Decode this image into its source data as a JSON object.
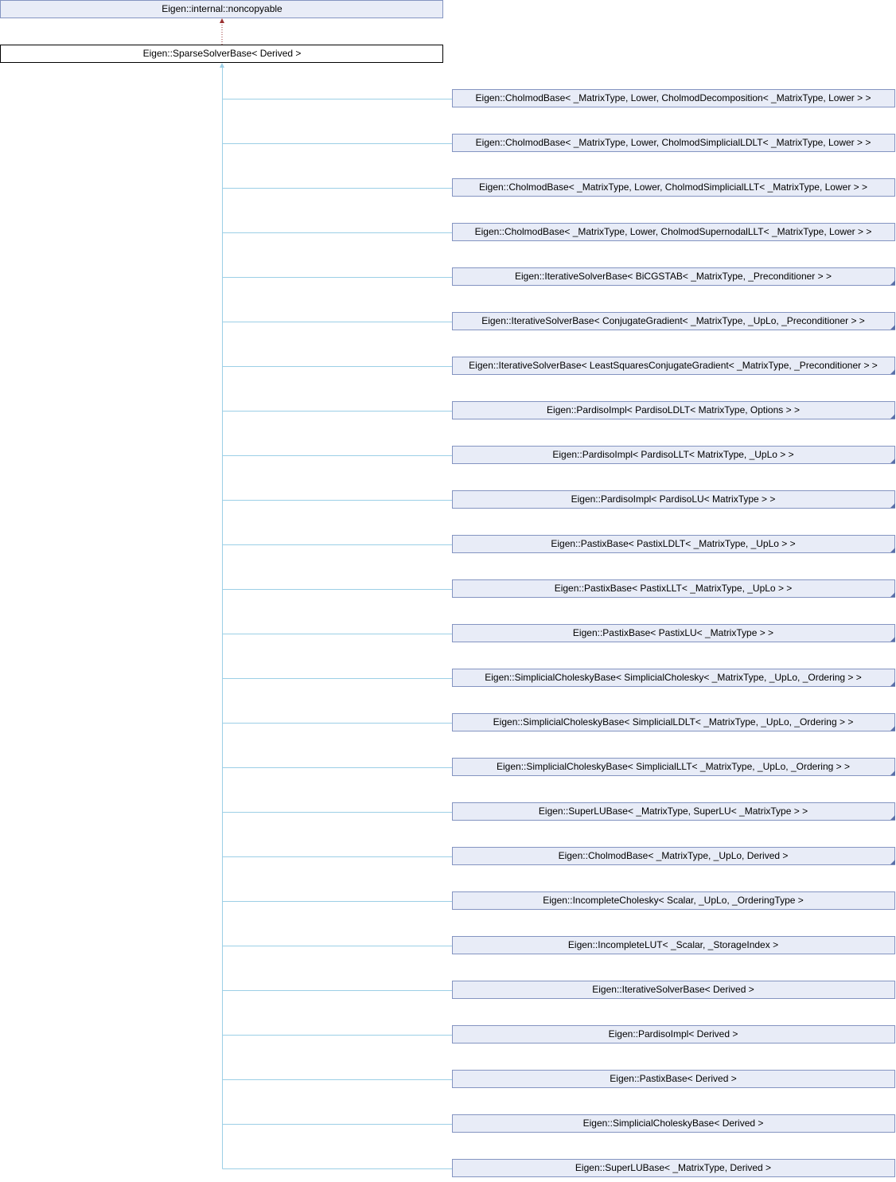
{
  "parent": {
    "label": "Eigen::internal::noncopyable"
  },
  "root": {
    "label": "Eigen::SparseSolverBase< Derived >"
  },
  "children": [
    {
      "label": "Eigen::CholmodBase< _MatrixType, Lower, CholmodDecomposition< _MatrixType, Lower > >"
    },
    {
      "label": "Eigen::CholmodBase< _MatrixType, Lower, CholmodSimplicialLDLT< _MatrixType, Lower > >"
    },
    {
      "label": "Eigen::CholmodBase< _MatrixType, Lower, CholmodSimplicialLLT< _MatrixType, Lower > >"
    },
    {
      "label": "Eigen::CholmodBase< _MatrixType, Lower, CholmodSupernodalLLT< _MatrixType, Lower > >"
    },
    {
      "label": "Eigen::IterativeSolverBase< BiCGSTAB< _MatrixType, _Preconditioner > >"
    },
    {
      "label": "Eigen::IterativeSolverBase< ConjugateGradient< _MatrixType, _UpLo, _Preconditioner > >"
    },
    {
      "label": "Eigen::IterativeSolverBase< LeastSquaresConjugateGradient< _MatrixType, _Preconditioner > >"
    },
    {
      "label": "Eigen::PardisoImpl< PardisoLDLT< MatrixType, Options > >"
    },
    {
      "label": "Eigen::PardisoImpl< PardisoLLT< MatrixType, _UpLo > >"
    },
    {
      "label": "Eigen::PardisoImpl< PardisoLU< MatrixType > >"
    },
    {
      "label": "Eigen::PastixBase< PastixLDLT< _MatrixType, _UpLo > >"
    },
    {
      "label": "Eigen::PastixBase< PastixLLT< _MatrixType, _UpLo > >"
    },
    {
      "label": "Eigen::PastixBase< PastixLU< _MatrixType > >"
    },
    {
      "label": "Eigen::SimplicialCholeskyBase< SimplicialCholesky< _MatrixType, _UpLo, _Ordering > >"
    },
    {
      "label": "Eigen::SimplicialCholeskyBase< SimplicialLDLT< _MatrixType, _UpLo, _Ordering > >"
    },
    {
      "label": "Eigen::SimplicialCholeskyBase< SimplicialLLT< _MatrixType, _UpLo, _Ordering > >"
    },
    {
      "label": "Eigen::SuperLUBase< _MatrixType, SuperLU< _MatrixType > >"
    },
    {
      "label": "Eigen::CholmodBase< _MatrixType, _UpLo, Derived >"
    },
    {
      "label": "Eigen::IncompleteCholesky< Scalar, _UpLo, _OrderingType >"
    },
    {
      "label": "Eigen::IncompleteLUT< _Scalar, _StorageIndex >"
    },
    {
      "label": "Eigen::IterativeSolverBase< Derived >"
    },
    {
      "label": "Eigen::PardisoImpl< Derived >"
    },
    {
      "label": "Eigen::PastixBase< Derived >"
    },
    {
      "label": "Eigen::SimplicialCholeskyBase< Derived >"
    },
    {
      "label": "Eigen::SuperLUBase< _MatrixType, Derived >"
    }
  ]
}
